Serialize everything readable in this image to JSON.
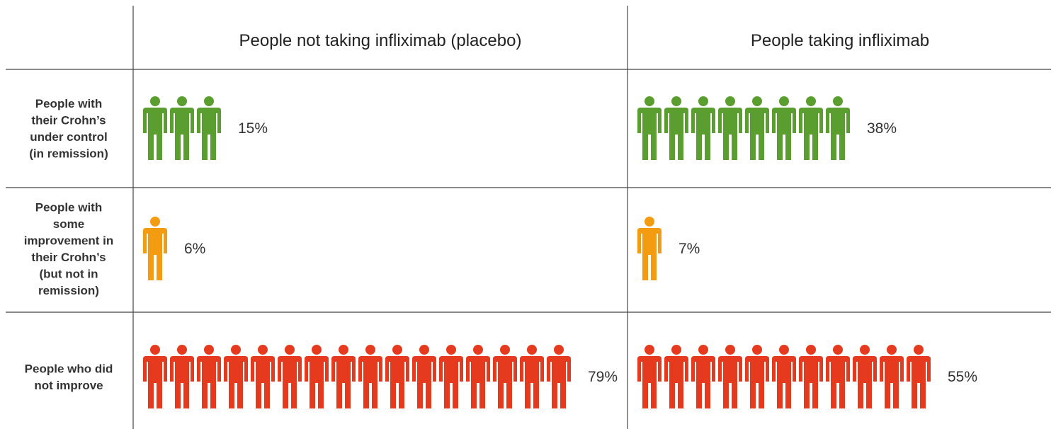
{
  "table": {
    "columns": [
      "People not taking infliximab (placebo)",
      "People taking infliximab"
    ],
    "rows": [
      {
        "label_lines": [
          "People with",
          "their Crohn’s",
          "under control",
          "(in remission)"
        ],
        "color": "#5a9e2f",
        "cells": [
          {
            "value_label": "15%",
            "icons": 3
          },
          {
            "value_label": "38%",
            "icons": 8
          }
        ]
      },
      {
        "label_lines": [
          "People with",
          "some",
          "improvement in",
          "their Crohn’s",
          "(but not in",
          "remission)"
        ],
        "color": "#f39c12",
        "cells": [
          {
            "value_label": "6%",
            "icons": 1
          },
          {
            "value_label": "7%",
            "icons": 1
          }
        ]
      },
      {
        "label_lines": [
          "People who did",
          "not improve"
        ],
        "color": "#e63a1e",
        "cells": [
          {
            "value_label": "79%",
            "icons": 16
          },
          {
            "value_label": "55%",
            "icons": 11
          }
        ]
      }
    ]
  }
}
